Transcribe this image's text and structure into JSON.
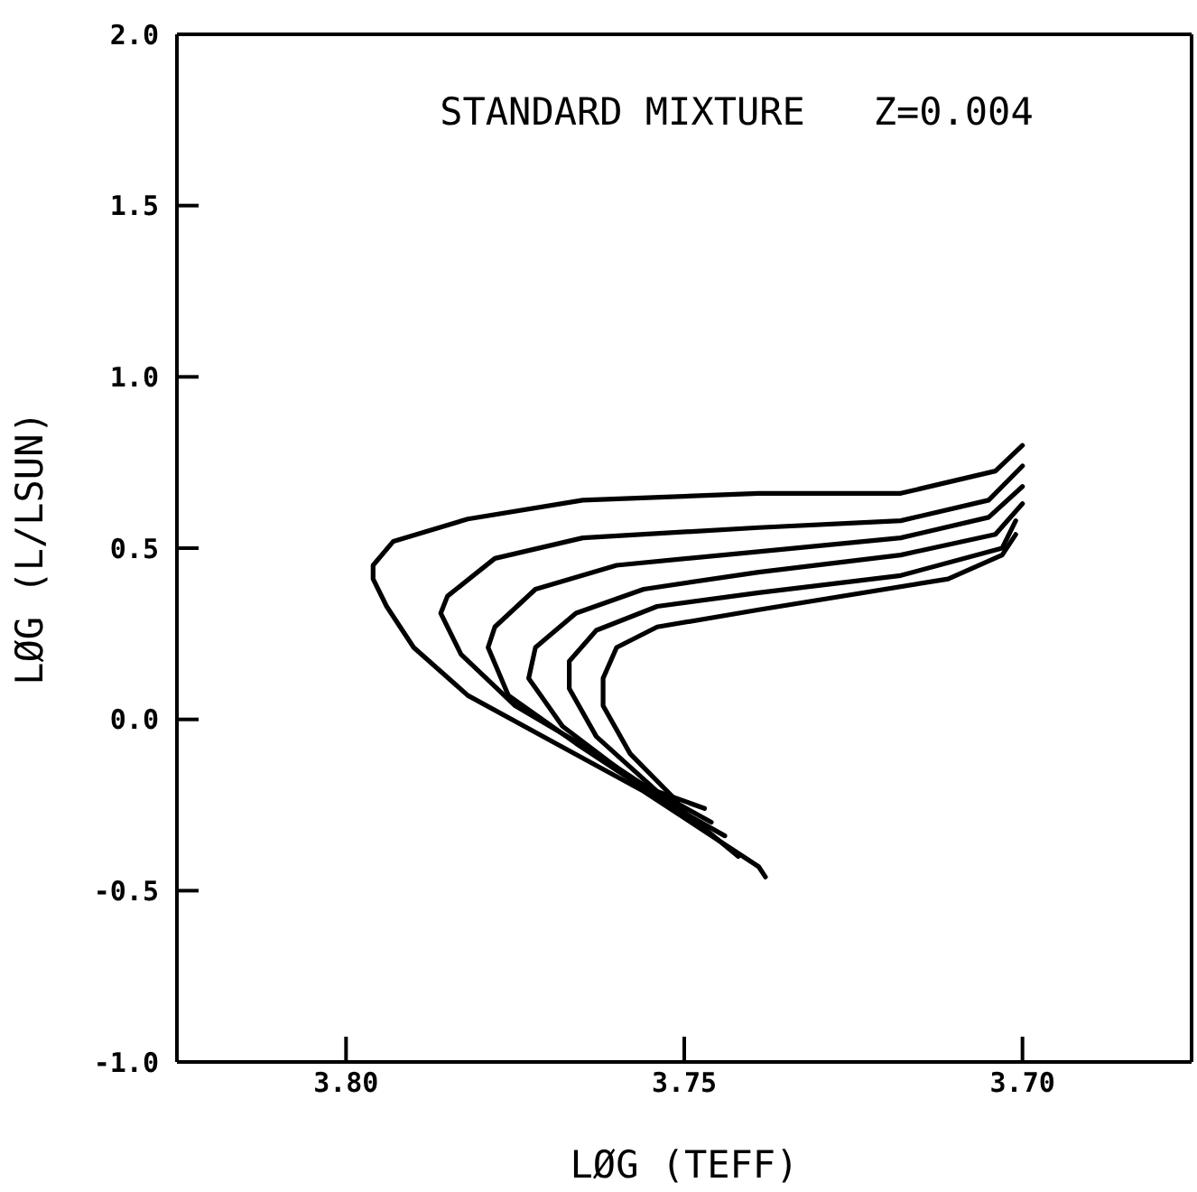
{
  "chart_data": {
    "type": "line",
    "title": "STANDARD MIXTURE   Z=0.004",
    "xlabel": "LØG (TEFF)",
    "ylabel": "LØG (L/LSUN)",
    "xlim": [
      3.825,
      3.675
    ],
    "ylim": [
      -1.0,
      2.0
    ],
    "xticks": [
      {
        "value": 3.8,
        "label": "3.80"
      },
      {
        "value": 3.75,
        "label": "3.75"
      },
      {
        "value": 3.7,
        "label": "3.70"
      }
    ],
    "yticks": [
      {
        "value": -1,
        "label": "-1.0"
      },
      {
        "value": -0.5,
        "label": "-0.5"
      },
      {
        "value": 0,
        "label": "0.0"
      },
      {
        "value": 0.5,
        "label": "0.5"
      },
      {
        "value": 1,
        "label": "1.0"
      },
      {
        "value": 1.5,
        "label": "1.5"
      },
      {
        "value": 2,
        "label": "2.0"
      }
    ],
    "marker": "none",
    "line_style": "solid",
    "series": [
      {
        "color": "#000000",
        "x": [
          3.738,
          3.739,
          3.756,
          3.769,
          3.782,
          3.79,
          3.794,
          3.796,
          3.796,
          3.793,
          3.782,
          3.765,
          3.739,
          3.718,
          3.704,
          3.7
        ],
        "values": [
          -0.46,
          -0.43,
          -0.21,
          -0.07,
          0.07,
          0.21,
          0.33,
          0.41,
          0.45,
          0.52,
          0.585,
          0.64,
          0.66,
          0.66,
          0.725,
          0.8
        ]
      },
      {
        "color": "#000000",
        "x": [
          3.742,
          3.75,
          3.763,
          3.775,
          3.783,
          3.786,
          3.785,
          3.778,
          3.765,
          3.739,
          3.718,
          3.705,
          3.7
        ],
        "values": [
          -0.4,
          -0.27,
          -0.1,
          0.04,
          0.19,
          0.31,
          0.36,
          0.47,
          0.53,
          0.56,
          0.58,
          0.64,
          0.74
        ]
      },
      {
        "color": "#000000",
        "x": [
          3.744,
          3.753,
          3.766,
          3.776,
          3.779,
          3.778,
          3.772,
          3.76,
          3.739,
          3.718,
          3.705,
          3.7
        ],
        "values": [
          -0.34,
          -0.24,
          -0.07,
          0.07,
          0.21,
          0.27,
          0.38,
          0.45,
          0.49,
          0.53,
          0.59,
          0.68
        ]
      },
      {
        "color": "#000000",
        "x": [
          3.746,
          3.758,
          3.768,
          3.773,
          3.772,
          3.766,
          3.756,
          3.739,
          3.718,
          3.704,
          3.7
        ],
        "values": [
          -0.3,
          -0.17,
          -0.02,
          0.12,
          0.21,
          0.31,
          0.38,
          0.43,
          0.48,
          0.54,
          0.63
        ]
      },
      {
        "color": "#000000",
        "x": [
          3.747,
          3.754,
          3.763,
          3.767,
          3.767,
          3.763,
          3.754,
          3.739,
          3.718,
          3.703,
          3.701
        ],
        "values": [
          -0.26,
          -0.21,
          -0.05,
          0.09,
          0.17,
          0.26,
          0.33,
          0.37,
          0.42,
          0.5,
          0.58
        ]
      },
      {
        "color": "#000000",
        "x": [
          3.751,
          3.758,
          3.762,
          3.762,
          3.76,
          3.754,
          3.739,
          3.711,
          3.703,
          3.701
        ],
        "values": [
          -0.24,
          -0.1,
          0.04,
          0.12,
          0.21,
          0.27,
          0.32,
          0.41,
          0.48,
          0.54
        ]
      }
    ]
  }
}
